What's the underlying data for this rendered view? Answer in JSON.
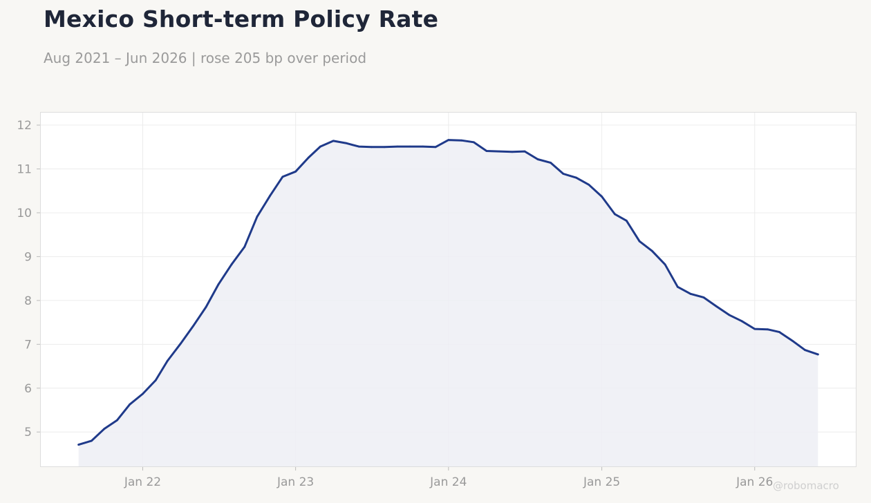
{
  "title": "Mexico Short-term Policy Rate",
  "subtitle": "Aug 2021 – Jun 2026 | rose 205 bp over period",
  "watermark": "@robomacro",
  "colors": {
    "line": "#1f3a8a",
    "fill": "#edeef5",
    "grid": "#ececec",
    "plot_bg": "#ffffff",
    "page_bg": "#f8f7f4",
    "tick_text": "#999999",
    "frame": "#dddddd"
  },
  "chart_data": {
    "type": "area",
    "title": "Mexico Short-term Policy Rate",
    "subtitle": "Aug 2021 – Jun 2026 | rose 205 bp over period",
    "xlabel": "",
    "ylabel": "",
    "grid": true,
    "ylim": [
      4.2,
      12.3
    ],
    "yticks": [
      5,
      6,
      7,
      8,
      9,
      10,
      11,
      12
    ],
    "xlim": [
      "2021-05-01",
      "2026-09-01"
    ],
    "xticks": [
      {
        "date": "2022-01-01",
        "label": "Jan 22"
      },
      {
        "date": "2023-01-01",
        "label": "Jan 23"
      },
      {
        "date": "2024-01-01",
        "label": "Jan 24"
      },
      {
        "date": "2025-01-01",
        "label": "Jan 25"
      },
      {
        "date": "2026-01-01",
        "label": "Jan 26"
      }
    ],
    "series": [
      {
        "x": [
          "2021-08",
          "2021-09",
          "2021-10",
          "2021-11",
          "2021-12",
          "2022-01",
          "2022-02",
          "2022-03",
          "2022-04",
          "2022-05",
          "2022-06",
          "2022-07",
          "2022-08",
          "2022-09",
          "2022-10",
          "2022-11",
          "2022-12",
          "2023-01",
          "2023-02",
          "2023-03",
          "2023-04",
          "2023-05",
          "2023-06",
          "2023-07",
          "2023-08",
          "2023-09",
          "2023-10",
          "2023-11",
          "2023-12",
          "2024-01",
          "2024-02",
          "2024-03",
          "2024-04",
          "2024-05",
          "2024-06",
          "2024-07",
          "2024-08",
          "2024-09",
          "2024-10",
          "2024-11",
          "2024-12",
          "2025-01",
          "2025-02",
          "2025-03",
          "2025-04",
          "2025-05",
          "2025-06",
          "2025-07",
          "2025-08",
          "2025-09",
          "2025-10",
          "2025-11",
          "2025-12",
          "2026-01",
          "2026-02",
          "2026-03",
          "2026-04",
          "2026-05",
          "2026-06"
        ],
        "values": [
          4.71,
          4.8,
          5.07,
          5.27,
          5.63,
          5.87,
          6.18,
          6.62,
          7.01,
          7.41,
          7.85,
          8.37,
          8.82,
          9.22,
          9.91,
          10.39,
          10.82,
          10.94,
          11.26,
          11.51,
          11.64,
          11.59,
          11.51,
          11.5,
          11.5,
          11.51,
          11.51,
          11.51,
          11.5,
          11.66,
          11.65,
          11.61,
          11.41,
          11.4,
          11.39,
          11.4,
          11.22,
          11.14,
          10.89,
          10.8,
          10.64,
          10.37,
          9.97,
          9.82,
          9.35,
          9.13,
          8.82,
          8.31,
          8.15,
          8.07,
          7.87,
          7.67,
          7.53,
          7.35,
          7.34,
          7.28,
          7.08,
          6.87,
          6.77
        ]
      }
    ]
  }
}
